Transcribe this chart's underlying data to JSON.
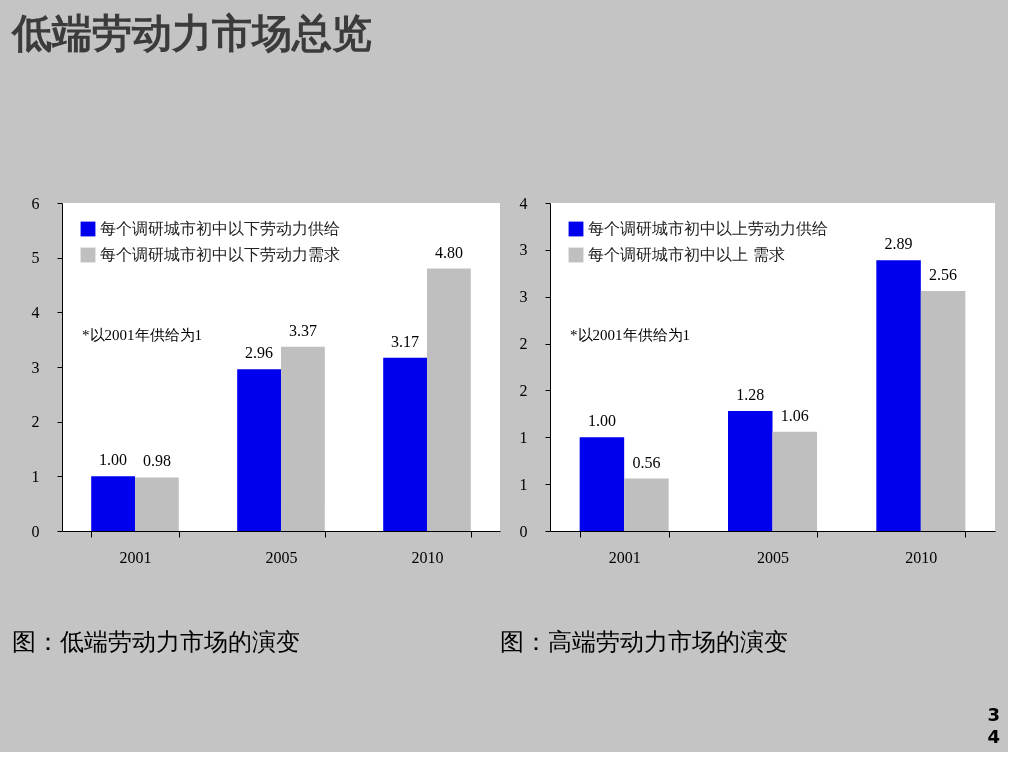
{
  "chart_data": [
    {
      "type": "bar",
      "title": "低端劳动力市场总览",
      "categories": [
        "2001",
        "2005",
        "2010"
      ],
      "series": [
        {
          "name": "每个调研城市初中以下劳动力供给",
          "color": "#0000ee",
          "values": [
            1.0,
            2.96,
            3.17
          ],
          "value_labels": [
            "1.00",
            "2.96",
            "3.17"
          ]
        },
        {
          "name": "每个调研城市初中以下劳动力需求",
          "color": "#bfbfbf",
          "values": [
            0.98,
            3.37,
            4.8
          ],
          "value_labels": [
            "0.98",
            "3.37",
            "4.80"
          ]
        }
      ],
      "ylim": [
        0,
        6
      ],
      "yticks": [
        0,
        1,
        2,
        3,
        4,
        5,
        6
      ],
      "legend": "top left",
      "annotations": [
        "*以2001年供给为1",
        "图：低端劳动力市场的演变"
      ]
    },
    {
      "type": "bar",
      "categories": [
        "2001",
        "2005",
        "2010"
      ],
      "series": [
        {
          "name": "每个调研城市初中以上劳动力供给",
          "color": "#0000ee",
          "values": [
            1.0,
            1.28,
            2.89
          ],
          "value_labels": [
            "1.00",
            "1.28",
            "2.89"
          ]
        },
        {
          "name": "每个调研城市初中以上 需求",
          "color": "#bfbfbf",
          "values": [
            0.56,
            1.06,
            2.56
          ],
          "value_labels": [
            "0.56",
            "1.06",
            "2.56"
          ]
        }
      ],
      "ylim": [
        0,
        3.5
      ],
      "yticks": [
        0,
        {
          "value": 0.5,
          "label": "1"
        },
        1,
        {
          "value": 1.5,
          "label": "2"
        },
        2,
        {
          "value": 2.5,
          "label": "3"
        },
        3,
        {
          "value": 3.5,
          "label": "4"
        }
      ],
      "legend": "top left",
      "annotations": [
        "*以2001年供给为1",
        "图：高端劳动力市场的演变",
        "34"
      ]
    }
  ]
}
